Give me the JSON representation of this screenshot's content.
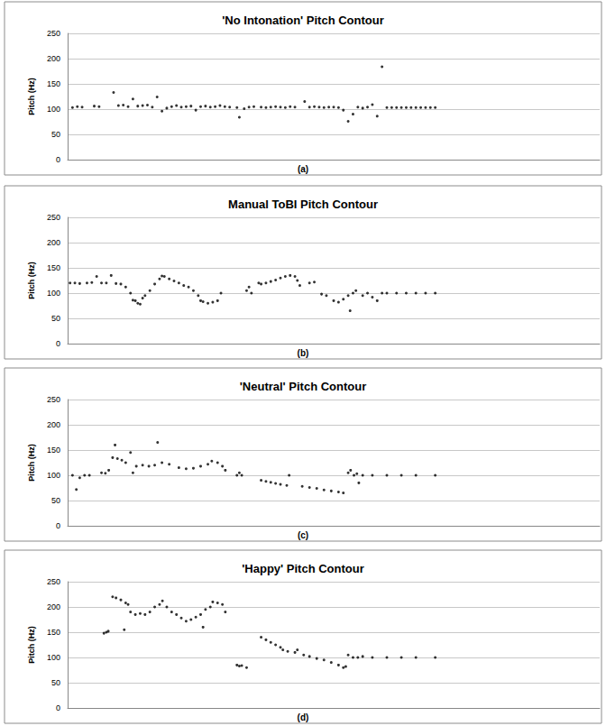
{
  "chart_data": [
    {
      "type": "scatter",
      "title": "'No Intonation' Pitch Contour",
      "subtitle": "(a)",
      "y_label": "Pitch (Hz)",
      "color": "#000000",
      "marker": "circle",
      "grid": true,
      "tick_labels": "y",
      "xlim": [
        0,
        110
      ],
      "ylim": [
        0,
        250
      ],
      "yticks": [
        0,
        50,
        100,
        150,
        200,
        250
      ],
      "x": [
        1,
        2,
        3,
        5.5,
        6.5,
        9.5,
        10.5,
        11.5,
        12.5,
        13.5,
        14.5,
        15.5,
        16.5,
        17.5,
        18.5,
        19.5,
        20.5,
        21.5,
        22.5,
        23.5,
        24.5,
        25.5,
        26.5,
        27.5,
        28.5,
        29.5,
        30.5,
        31.5,
        32.5,
        33.5,
        35,
        35.5,
        36.5,
        37.5,
        38.5,
        40,
        41,
        42,
        43,
        44,
        45,
        46,
        47,
        49,
        50,
        51,
        52,
        53,
        54,
        55,
        56,
        57,
        58,
        59,
        60,
        61,
        62,
        63,
        64,
        65,
        66,
        67,
        68,
        69,
        70,
        71,
        72,
        73,
        74,
        75,
        76
      ],
      "values": [
        103,
        105,
        104,
        106,
        105,
        133,
        107,
        108,
        105,
        120,
        106,
        107,
        108,
        104,
        124,
        96,
        102,
        105,
        107,
        104,
        105,
        106,
        98,
        105,
        106,
        104,
        105,
        107,
        105,
        104,
        103,
        84,
        101,
        104,
        105,
        104,
        103,
        104,
        105,
        104,
        103,
        105,
        104,
        115,
        104,
        105,
        104,
        103,
        104,
        104,
        103,
        98,
        76,
        90,
        104,
        102,
        104,
        109,
        86,
        184,
        103,
        103,
        103,
        103,
        103,
        103,
        103,
        103,
        103,
        103,
        103
      ]
    },
    {
      "type": "scatter",
      "title": "Manual ToBI Pitch Contour",
      "subtitle": "(b)",
      "y_label": "Pitch (Hz)",
      "color": "#000000",
      "marker": "circle",
      "grid": true,
      "tick_labels": "y",
      "xlim": [
        0,
        110
      ],
      "ylim": [
        0,
        250
      ],
      "yticks": [
        0,
        50,
        100,
        150,
        200,
        250
      ],
      "x": [
        0.5,
        1.5,
        2.5,
        4,
        5,
        6,
        7,
        8,
        9,
        10,
        11,
        12,
        13,
        13.5,
        14,
        14.5,
        15,
        15.5,
        16,
        17,
        18,
        19,
        19.5,
        20,
        21,
        22,
        23,
        24,
        25,
        26,
        27,
        27.5,
        28,
        29,
        30,
        31,
        31.7,
        37,
        37.5,
        38,
        39.5,
        40,
        41,
        42,
        43,
        44,
        45,
        46,
        47,
        47.5,
        48,
        50,
        51,
        52.5,
        53.5,
        55,
        56,
        57,
        58,
        58.4,
        59,
        59.6,
        61,
        62,
        63,
        64,
        65,
        66,
        68,
        70,
        72,
        74,
        76
      ],
      "values": [
        120,
        120,
        119,
        120,
        121,
        133,
        120,
        120,
        135,
        119,
        118,
        112,
        100,
        86,
        85,
        80,
        78,
        90,
        95,
        105,
        118,
        128,
        134,
        133,
        128,
        124,
        120,
        115,
        112,
        105,
        95,
        85,
        83,
        80,
        82,
        85,
        100,
        105,
        112,
        100,
        120,
        118,
        120,
        123,
        126,
        130,
        133,
        135,
        133,
        125,
        115,
        120,
        122,
        98,
        95,
        85,
        82,
        88,
        95,
        65,
        100,
        105,
        95,
        100,
        92,
        85,
        100,
        100,
        100,
        100,
        100,
        100,
        100
      ]
    },
    {
      "type": "scatter",
      "title": "'Neutral' Pitch Contour",
      "subtitle": "(c)",
      "y_label": "Pitch (Hz)",
      "color": "#000000",
      "marker": "circle",
      "grid": true,
      "tick_labels": "y",
      "xlim": [
        0,
        110
      ],
      "ylim": [
        0,
        250
      ],
      "yticks": [
        0,
        50,
        100,
        150,
        200,
        250
      ],
      "x": [
        1,
        1.8,
        2.5,
        3.5,
        4.5,
        7,
        7.8,
        8.5,
        9.3,
        9.8,
        10.3,
        11.2,
        12,
        13,
        13.5,
        14.2,
        15.5,
        16.8,
        18,
        18.6,
        19.5,
        21,
        23,
        24.5,
        26,
        27.5,
        29,
        29.8,
        31,
        32,
        32.6,
        35,
        35.5,
        36,
        40,
        41,
        42,
        43,
        44,
        45.3,
        45.8,
        48.5,
        50,
        51.5,
        53,
        54.5,
        56,
        57,
        58,
        58.5,
        59.2,
        59.8,
        60.2,
        61,
        63,
        66,
        69,
        72,
        76
      ],
      "values": [
        100,
        72,
        95,
        100,
        100,
        105,
        104,
        110,
        135,
        160,
        133,
        130,
        125,
        145,
        105,
        118,
        120,
        118,
        120,
        165,
        125,
        122,
        115,
        113,
        114,
        118,
        122,
        128,
        125,
        118,
        110,
        100,
        105,
        100,
        90,
        88,
        86,
        84,
        82,
        80,
        100,
        78,
        76,
        74,
        71,
        69,
        67,
        65,
        105,
        110,
        100,
        103,
        85,
        100,
        100,
        100,
        100,
        100,
        100
      ]
    },
    {
      "type": "scatter",
      "title": "'Happy' Pitch Contour",
      "subtitle": "(d)",
      "y_label": "Pitch (Hz)",
      "color": "#000000",
      "marker": "circle",
      "grid": true,
      "tick_labels": "y",
      "xlim": [
        0,
        110
      ],
      "ylim": [
        0,
        250
      ],
      "yticks": [
        0,
        50,
        100,
        150,
        200,
        250
      ],
      "x": [
        7.5,
        8,
        8.4,
        9.3,
        10,
        11,
        11.7,
        12,
        12.5,
        13,
        14,
        15,
        16,
        17,
        18,
        19,
        19.6,
        20.5,
        21.5,
        22.5,
        23.5,
        24.5,
        25.5,
        26.5,
        27.5,
        28,
        28.5,
        29.5,
        30,
        31,
        32,
        32.6,
        35,
        35.5,
        36,
        37,
        40,
        41,
        42,
        43,
        44,
        44.5,
        45.5,
        47,
        47.5,
        48.8,
        50,
        51.5,
        53,
        54.5,
        56,
        57,
        57.5,
        58,
        59,
        60,
        61,
        63,
        66,
        69,
        72,
        76
      ],
      "values": [
        148,
        150,
        152,
        220,
        218,
        214,
        155,
        208,
        205,
        190,
        185,
        187,
        185,
        190,
        200,
        205,
        212,
        200,
        190,
        185,
        178,
        172,
        175,
        180,
        185,
        160,
        195,
        200,
        210,
        208,
        205,
        190,
        85,
        83,
        84,
        80,
        140,
        135,
        130,
        125,
        120,
        115,
        112,
        110,
        115,
        105,
        102,
        98,
        95,
        90,
        85,
        80,
        82,
        105,
        100,
        100,
        102,
        100,
        100,
        100,
        100,
        100
      ]
    }
  ]
}
